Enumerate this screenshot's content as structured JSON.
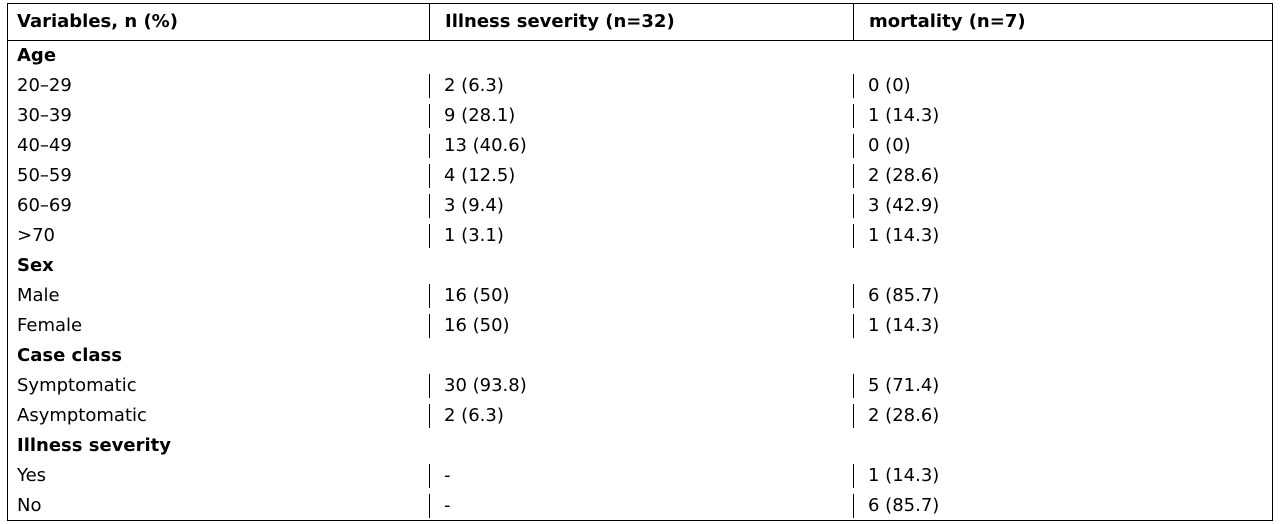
{
  "headers": [
    "Variables, n (%)",
    "Illness severity (n=32)",
    "mortality (n=7)"
  ],
  "rows": [
    {
      "type": "section",
      "label": "Age"
    },
    {
      "type": "data",
      "label": "20–29",
      "severity": "2 (6.3)",
      "mortality": "0 (0)"
    },
    {
      "type": "data",
      "label": "30–39",
      "severity": "9 (28.1)",
      "mortality": "1 (14.3)"
    },
    {
      "type": "data",
      "label": "40–49",
      "severity": "13 (40.6)",
      "mortality": "0 (0)"
    },
    {
      "type": "data",
      "label": "50–59",
      "severity": "4 (12.5)",
      "mortality": "2 (28.6)"
    },
    {
      "type": "data",
      "label": "60–69",
      "severity": "3 (9.4)",
      "mortality": "3 (42.9)"
    },
    {
      "type": "data",
      "label": ">70",
      "severity": "1 (3.1)",
      "mortality": "1 (14.3)"
    },
    {
      "type": "section",
      "label": "Sex"
    },
    {
      "type": "data",
      "label": "Male",
      "severity": "16 (50)",
      "mortality": "6 (85.7)"
    },
    {
      "type": "data",
      "label": "Female",
      "severity": "16 (50)",
      "mortality": "1 (14.3)"
    },
    {
      "type": "section",
      "label": "Case class"
    },
    {
      "type": "data",
      "label": "Symptomatic",
      "severity": "30 (93.8)",
      "mortality": "5 (71.4)"
    },
    {
      "type": "data",
      "label": "Asymptomatic",
      "severity": "2 (6.3)",
      "mortality": "2 (28.6)"
    },
    {
      "type": "section",
      "label": "Illness severity"
    },
    {
      "type": "data",
      "label": "Yes",
      "severity": "-",
      "mortality": "1 (14.3)"
    },
    {
      "type": "data",
      "label": "No",
      "severity": "-",
      "mortality": "6 (85.7)"
    }
  ]
}
